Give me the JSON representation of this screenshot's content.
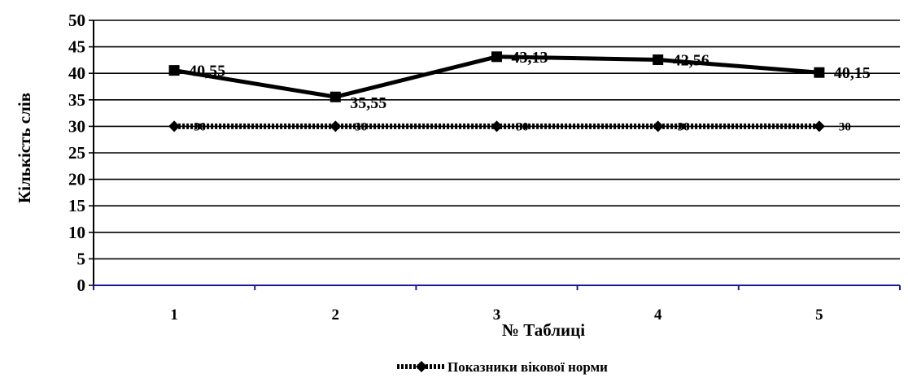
{
  "chart_data": {
    "type": "line",
    "title": "",
    "xlabel": "№ Таблиці",
    "ylabel": "Кількість слів",
    "categories": [
      "1",
      "2",
      "3",
      "4",
      "5"
    ],
    "ylim": [
      0,
      50
    ],
    "yticks": [
      0,
      5,
      10,
      15,
      20,
      25,
      30,
      35,
      40,
      45,
      50
    ],
    "grid": true,
    "legend_position": "bottom",
    "series": [
      {
        "name": "",
        "values": [
          40.55,
          35.55,
          43.13,
          42.56,
          40.15
        ],
        "labels": [
          "40,55",
          "35,55",
          "43,13",
          "42,56",
          "40,15"
        ],
        "color": "#000000",
        "marker": "square",
        "style": "solid"
      },
      {
        "name": "Показники вікової норми",
        "values": [
          30,
          30,
          30,
          30,
          30
        ],
        "labels": [
          "30",
          "30",
          "30",
          "30",
          "30"
        ],
        "color": "#000000",
        "marker": "diamond",
        "style": "dotted"
      }
    ],
    "axis_color": "#1a1a9a"
  }
}
